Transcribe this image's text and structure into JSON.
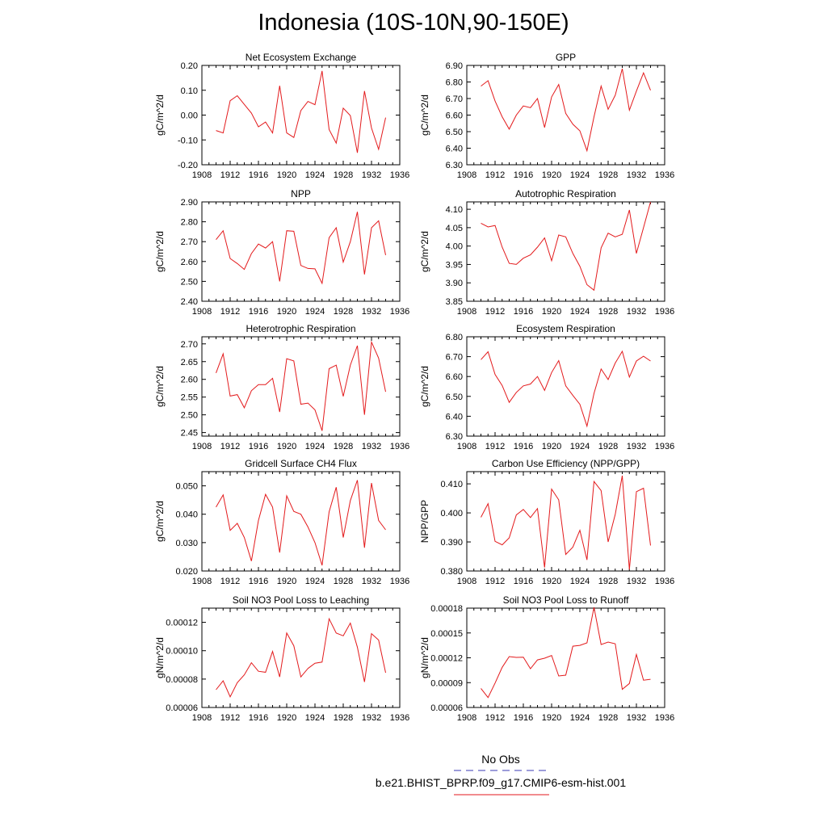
{
  "page": {
    "title": "Indonesia (10S-10N,90-150E)"
  },
  "colors": {
    "model": "#e31a1c",
    "obs": "#3a3ab5",
    "axis": "#000000"
  },
  "legend": {
    "obs_label": "No Obs",
    "model_label": "b.e21.BHIST_BPRP.f09_g17.CMIP6-esm-hist.001"
  },
  "chart_data": [
    {
      "type": "line",
      "title": "Net Ecosystem Exchange",
      "ylabel": "gC/m^2/d",
      "xlim": [
        1908,
        1936
      ],
      "xticks": [
        "1908",
        "1912",
        "1916",
        "1920",
        "1924",
        "1928",
        "1932",
        "1936"
      ],
      "ylim": [
        -0.2,
        0.2
      ],
      "yticks": [
        "0.20",
        "0.10",
        "0.00",
        "-0.10",
        "-0.20"
      ],
      "x": [
        1910,
        1911,
        1912,
        1913,
        1914,
        1915,
        1916,
        1917,
        1918,
        1919,
        1920,
        1921,
        1922,
        1923,
        1924,
        1925,
        1926,
        1927,
        1928,
        1929,
        1930,
        1931,
        1932,
        1933,
        1934
      ],
      "values": [
        -0.062,
        -0.072,
        0.058,
        0.078,
        0.043,
        0.008,
        -0.047,
        -0.028,
        -0.072,
        0.118,
        -0.072,
        -0.09,
        0.018,
        0.055,
        0.042,
        0.178,
        -0.058,
        -0.113,
        0.028,
        -0.002,
        -0.152,
        0.097,
        -0.052,
        -0.138,
        -0.01
      ]
    },
    {
      "type": "line",
      "title": "GPP",
      "ylabel": "gC/m^2/d",
      "xlim": [
        1908,
        1936
      ],
      "xticks": [
        "1908",
        "1912",
        "1916",
        "1920",
        "1924",
        "1928",
        "1932",
        "1936"
      ],
      "ylim": [
        6.3,
        6.9
      ],
      "yticks": [
        "6.90",
        "6.80",
        "6.70",
        "6.60",
        "6.50",
        "6.40",
        "6.30"
      ],
      "x": [
        1910,
        1911,
        1912,
        1913,
        1914,
        1915,
        1916,
        1917,
        1918,
        1919,
        1920,
        1921,
        1922,
        1923,
        1924,
        1925,
        1926,
        1927,
        1928,
        1929,
        1930,
        1931,
        1932,
        1933,
        1934
      ],
      "values": [
        6.775,
        6.808,
        6.685,
        6.59,
        6.515,
        6.6,
        6.655,
        6.645,
        6.7,
        6.525,
        6.71,
        6.785,
        6.61,
        6.545,
        6.505,
        6.385,
        6.59,
        6.775,
        6.635,
        6.72,
        6.88,
        6.63,
        6.745,
        6.855,
        6.75
      ]
    },
    {
      "type": "line",
      "title": "NPP",
      "ylabel": "gC/m^2/d",
      "xlim": [
        1908,
        1936
      ],
      "xticks": [
        "1908",
        "1912",
        "1916",
        "1920",
        "1924",
        "1928",
        "1932",
        "1936"
      ],
      "ylim": [
        2.4,
        2.9
      ],
      "yticks": [
        "2.90",
        "2.80",
        "2.70",
        "2.60",
        "2.50",
        "2.40"
      ],
      "x": [
        1910,
        1911,
        1912,
        1913,
        1914,
        1915,
        1916,
        1917,
        1918,
        1919,
        1920,
        1921,
        1922,
        1923,
        1924,
        1925,
        1926,
        1927,
        1928,
        1929,
        1930,
        1931,
        1932,
        1933,
        1934
      ],
      "values": [
        2.71,
        2.755,
        2.615,
        2.59,
        2.56,
        2.64,
        2.688,
        2.668,
        2.7,
        2.5,
        2.755,
        2.752,
        2.58,
        2.565,
        2.563,
        2.49,
        2.72,
        2.77,
        2.597,
        2.7,
        2.85,
        2.535,
        2.77,
        2.805,
        2.632
      ]
    },
    {
      "type": "line",
      "title": "Autotrophic Respiration",
      "ylabel": "gC/m^2/d",
      "xlim": [
        1908,
        1936
      ],
      "xticks": [
        "1908",
        "1912",
        "1916",
        "1920",
        "1924",
        "1928",
        "1932",
        "1936"
      ],
      "ylim": [
        3.85,
        4.12
      ],
      "yticks": [
        "4.10",
        "4.05",
        "4.00",
        "3.95",
        "3.90",
        "3.85"
      ],
      "x": [
        1910,
        1911,
        1912,
        1913,
        1914,
        1915,
        1916,
        1917,
        1918,
        1919,
        1920,
        1921,
        1922,
        1923,
        1924,
        1925,
        1926,
        1927,
        1928,
        1929,
        1930,
        1931,
        1932,
        1933,
        1934
      ],
      "values": [
        4.062,
        4.052,
        4.056,
        3.997,
        3.953,
        3.95,
        3.967,
        3.976,
        3.997,
        4.022,
        3.96,
        4.03,
        4.025,
        3.98,
        3.945,
        3.895,
        3.88,
        3.995,
        4.035,
        4.025,
        4.032,
        4.098,
        3.98,
        4.05,
        4.12
      ]
    },
    {
      "type": "line",
      "title": "Heterotrophic Respiration",
      "ylabel": "gC/m^2/d",
      "xlim": [
        1908,
        1936
      ],
      "xticks": [
        "1908",
        "1912",
        "1916",
        "1920",
        "1924",
        "1928",
        "1932",
        "1936"
      ],
      "ylim": [
        2.44,
        2.72
      ],
      "yticks": [
        "2.70",
        "2.65",
        "2.60",
        "2.55",
        "2.50",
        "2.45"
      ],
      "x": [
        1910,
        1911,
        1912,
        1913,
        1914,
        1915,
        1916,
        1917,
        1918,
        1919,
        1920,
        1921,
        1922,
        1923,
        1924,
        1925,
        1926,
        1927,
        1928,
        1929,
        1930,
        1931,
        1932,
        1933,
        1934
      ],
      "values": [
        2.618,
        2.672,
        2.553,
        2.557,
        2.52,
        2.568,
        2.585,
        2.585,
        2.603,
        2.508,
        2.658,
        2.652,
        2.53,
        2.533,
        2.514,
        2.455,
        2.63,
        2.64,
        2.552,
        2.64,
        2.695,
        2.5,
        2.705,
        2.66,
        2.565
      ]
    },
    {
      "type": "line",
      "title": "Ecosystem Respiration",
      "ylabel": "gC/m^2/d",
      "xlim": [
        1908,
        1936
      ],
      "xticks": [
        "1908",
        "1912",
        "1916",
        "1920",
        "1924",
        "1928",
        "1932",
        "1936"
      ],
      "ylim": [
        6.3,
        6.8
      ],
      "yticks": [
        "6.80",
        "6.70",
        "6.60",
        "6.50",
        "6.40",
        "6.30"
      ],
      "x": [
        1910,
        1911,
        1912,
        1913,
        1914,
        1915,
        1916,
        1917,
        1918,
        1919,
        1920,
        1921,
        1922,
        1923,
        1924,
        1925,
        1926,
        1927,
        1928,
        1929,
        1930,
        1931,
        1932,
        1933,
        1934
      ],
      "values": [
        6.685,
        6.725,
        6.61,
        6.555,
        6.47,
        6.52,
        6.553,
        6.562,
        6.6,
        6.53,
        6.62,
        6.68,
        6.553,
        6.505,
        6.46,
        6.35,
        6.515,
        6.638,
        6.585,
        6.668,
        6.727,
        6.597,
        6.678,
        6.702,
        6.678
      ]
    },
    {
      "type": "line",
      "title": "Gridcell Surface CH4 Flux",
      "ylabel": "gC/m^2/d",
      "xlim": [
        1908,
        1936
      ],
      "xticks": [
        "1908",
        "1912",
        "1916",
        "1920",
        "1924",
        "1928",
        "1932",
        "1936"
      ],
      "ylim": [
        0.02,
        0.055
      ],
      "yticks": [
        "0.050",
        "0.040",
        "0.030",
        "0.020"
      ],
      "x": [
        1910,
        1911,
        1912,
        1913,
        1914,
        1915,
        1916,
        1917,
        1918,
        1919,
        1920,
        1921,
        1922,
        1923,
        1924,
        1925,
        1926,
        1927,
        1928,
        1929,
        1930,
        1931,
        1932,
        1933,
        1934
      ],
      "values": [
        0.0425,
        0.0468,
        0.0343,
        0.0368,
        0.0318,
        0.0235,
        0.0378,
        0.047,
        0.0425,
        0.0265,
        0.0465,
        0.041,
        0.04,
        0.0355,
        0.03,
        0.022,
        0.0408,
        0.0495,
        0.0318,
        0.0448,
        0.052,
        0.0282,
        0.051,
        0.0378,
        0.0345
      ]
    },
    {
      "type": "line",
      "title": "Carbon Use Efficiency (NPP/GPP)",
      "ylabel": "NPP/GPP",
      "xlim": [
        1908,
        1936
      ],
      "xticks": [
        "1908",
        "1912",
        "1916",
        "1920",
        "1924",
        "1928",
        "1932",
        "1936"
      ],
      "ylim": [
        0.38,
        0.4142
      ],
      "yticks": [
        "0.410",
        "0.400",
        "0.390",
        "0.380"
      ],
      "x": [
        1910,
        1911,
        1912,
        1913,
        1914,
        1915,
        1916,
        1917,
        1918,
        1919,
        1920,
        1921,
        1922,
        1923,
        1924,
        1925,
        1926,
        1927,
        1928,
        1929,
        1930,
        1931,
        1932,
        1933,
        1934
      ],
      "values": [
        0.3985,
        0.4032,
        0.3902,
        0.389,
        0.3914,
        0.3993,
        0.4012,
        0.3984,
        0.4015,
        0.3812,
        0.4082,
        0.4045,
        0.3857,
        0.3882,
        0.394,
        0.3838,
        0.4108,
        0.4077,
        0.39,
        0.3995,
        0.4128,
        0.3805,
        0.4073,
        0.4085,
        0.3888
      ]
    },
    {
      "type": "line",
      "title": "Soil NO3 Pool Loss to Leaching",
      "ylabel": "gN/m^2/d",
      "xlim": [
        1908,
        1936
      ],
      "xticks": [
        "1908",
        "1912",
        "1916",
        "1920",
        "1924",
        "1928",
        "1932",
        "1936"
      ],
      "ylim": [
        6e-05,
        0.00013
      ],
      "yticks": [
        "0.00012",
        "0.00010",
        "0.00008",
        "0.00006"
      ],
      "x": [
        1910,
        1911,
        1912,
        1913,
        1914,
        1915,
        1916,
        1917,
        1918,
        1919,
        1920,
        1921,
        1922,
        1923,
        1924,
        1925,
        1926,
        1927,
        1928,
        1929,
        1930,
        1931,
        1932,
        1933,
        1934
      ],
      "values": [
        7.25e-05,
        7.88e-05,
        6.75e-05,
        7.75e-05,
        8.3e-05,
        9.15e-05,
        8.55e-05,
        8.48e-05,
        9.95e-05,
        8.15e-05,
        0.0001125,
        0.0001035,
        8.15e-05,
        8.75e-05,
        9.12e-05,
        9.2e-05,
        0.0001225,
        0.0001125,
        0.0001105,
        0.0001195,
        0.0001025,
        7.8e-05,
        0.000112,
        0.0001075,
        8.45e-05
      ]
    },
    {
      "type": "line",
      "title": "Soil NO3 Pool Loss to Runoff",
      "ylabel": "gN/m^2/d",
      "xlim": [
        1908,
        1936
      ],
      "xticks": [
        "1908",
        "1912",
        "1916",
        "1920",
        "1924",
        "1928",
        "1932",
        "1936"
      ],
      "ylim": [
        6e-05,
        0.00018
      ],
      "yticks": [
        "0.00018",
        "0.00015",
        "0.00012",
        "0.00009",
        "0.00006"
      ],
      "x": [
        1910,
        1911,
        1912,
        1913,
        1914,
        1915,
        1916,
        1917,
        1918,
        1919,
        1920,
        1921,
        1922,
        1923,
        1924,
        1925,
        1926,
        1927,
        1928,
        1929,
        1930,
        1931,
        1932,
        1933,
        1934
      ],
      "values": [
        8.3e-05,
        7.2e-05,
        8.95e-05,
        0.0001085,
        0.0001215,
        0.0001205,
        0.0001208,
        0.0001068,
        0.0001175,
        0.0001195,
        0.0001228,
        9.8e-05,
        9.9e-05,
        0.000134,
        0.000135,
        0.000138,
        0.000181,
        0.000136,
        0.000139,
        0.000137,
        8.2e-05,
        8.9e-05,
        0.000124,
        9.3e-05,
        9.4e-05
      ]
    }
  ]
}
